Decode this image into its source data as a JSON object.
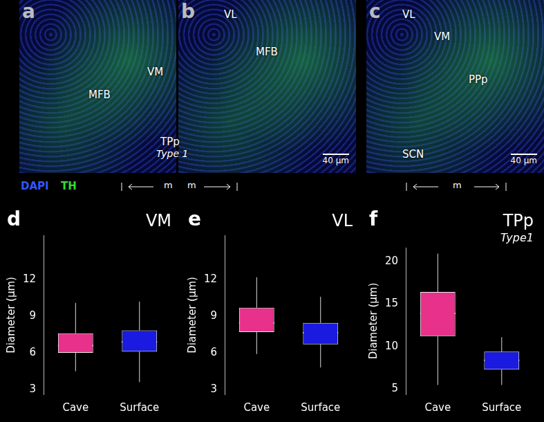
{
  "image_panels": [
    {
      "letter": "a",
      "labels": [
        "VM",
        "MFB"
      ]
    },
    {
      "letter": "b",
      "labels": [
        "VL",
        "MFB"
      ],
      "scale_bar": "40 µm"
    },
    {
      "letter": "c",
      "labels": [
        "VL",
        "VM",
        "PPp",
        "SCN"
      ],
      "scale_bar": "40 µm"
    }
  ],
  "shared_label": {
    "text": "TPp",
    "subtext": "Type 1"
  },
  "stains": [
    {
      "name": "DAPI",
      "color": "#3355ff"
    },
    {
      "name": "TH",
      "color": "#33dd33"
    }
  ],
  "orientation_marks": [
    "m",
    "m",
    "m"
  ],
  "chart_data": [
    {
      "type": "boxplot",
      "panel": "d",
      "title": "VM",
      "categories": [
        "Cave",
        "Surface"
      ],
      "colors": [
        "#e8318a",
        "#1a1ae0"
      ],
      "ylabel": "Diameter (µm)",
      "ylim": [
        2.6,
        15.6
      ],
      "yticks": [
        3,
        6,
        9,
        12
      ],
      "min": [
        4.5,
        3.6
      ],
      "q1": [
        6.0,
        6.1
      ],
      "median": [
        6.6,
        6.9
      ],
      "q3": [
        7.6,
        7.85
      ],
      "max": [
        10.1,
        10.2
      ],
      "mean": [
        6.95,
        7.1
      ]
    },
    {
      "type": "boxplot",
      "panel": "e",
      "title": "VL",
      "categories": [
        "Cave",
        "Surface"
      ],
      "colors": [
        "#e8318a",
        "#1a1ae0"
      ],
      "ylabel": "Diameter (µm)",
      "ylim": [
        2.6,
        15.6
      ],
      "yticks": [
        3,
        6,
        9,
        12
      ],
      "min": [
        5.9,
        4.8
      ],
      "q1": [
        7.7,
        6.7
      ],
      "median": [
        8.45,
        7.65
      ],
      "q3": [
        9.7,
        8.45
      ],
      "max": [
        12.2,
        10.6
      ],
      "mean": [
        8.95,
        7.75
      ]
    },
    {
      "type": "boxplot",
      "panel": "f",
      "title": "TPp",
      "subtitle": "Type1",
      "categories": [
        "Cave",
        "Surface"
      ],
      "colors": [
        "#e8318a",
        "#1a1ae0"
      ],
      "ylabel": "Diameter (µm)",
      "ylim": [
        4.4,
        21.6
      ],
      "yticks": [
        5,
        10,
        15,
        20
      ],
      "min": [
        5.5,
        5.5
      ],
      "q1": [
        11.2,
        7.3
      ],
      "median": [
        13.9,
        8.4
      ],
      "q3": [
        16.4,
        9.4
      ],
      "max": [
        20.9,
        11.1
      ],
      "mean": [
        13.8,
        8.3
      ]
    }
  ]
}
